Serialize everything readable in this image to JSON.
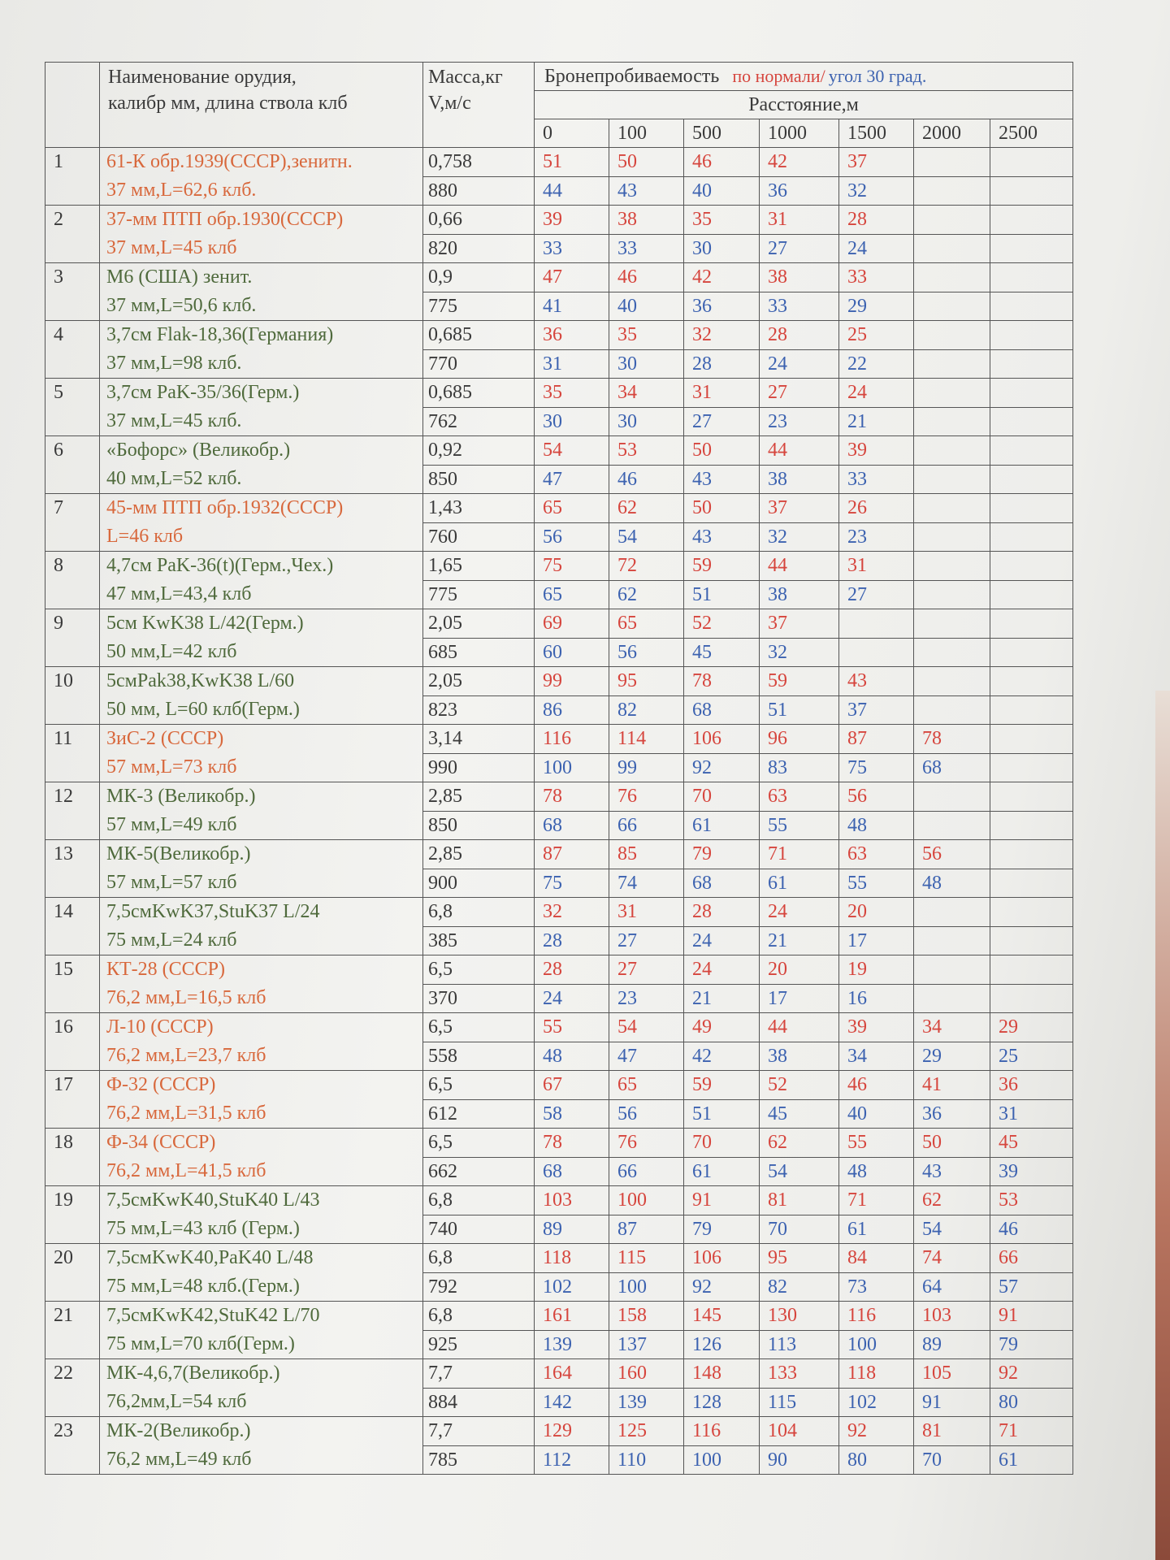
{
  "header": {
    "name_lines": [
      "Наименование  орудия,",
      "калибр мм, длина  ствола клб"
    ],
    "mass_lines": [
      "Масса,кг",
      "V,м/с"
    ],
    "penetration": "Бронепробиваемость",
    "normal": "по нормали/",
    "angle": "угол 30 град.",
    "normal_color": "#d6453d",
    "angle_color": "#3c62b0",
    "distance": "Расстояние,м",
    "distances": [
      "0",
      "100",
      "500",
      "1000",
      "1500",
      "2000",
      "2500"
    ]
  },
  "rows": [
    {
      "num": 1,
      "name": [
        "61-К обр.1939(СССР),зенитн.",
        "37 мм,L=62,6 клб."
      ],
      "color": "#d8683c",
      "mass": "0,758",
      "velocity": 880,
      "normal": [
        51,
        50,
        46,
        42,
        37
      ],
      "angle": [
        44,
        43,
        40,
        36,
        32
      ]
    },
    {
      "num": 2,
      "name": [
        "37-мм ПТП обр.1930(СССР)",
        "37 мм,L=45 клб"
      ],
      "color": "#d8683c",
      "mass": "0,66",
      "velocity": 820,
      "normal": [
        39,
        38,
        35,
        31,
        28
      ],
      "angle": [
        33,
        33,
        30,
        27,
        24
      ]
    },
    {
      "num": 3,
      "name": [
        "М6 (США) зенит.",
        "37 мм,L=50,6 клб."
      ],
      "color": "#4f6a3c",
      "mass": "0,9",
      "velocity": 775,
      "normal": [
        47,
        46,
        42,
        38,
        33
      ],
      "angle": [
        41,
        40,
        36,
        33,
        29
      ]
    },
    {
      "num": 4,
      "name": [
        "3,7см Flak-18,36(Германия)",
        "37 мм,L=98 клб."
      ],
      "color": "#4f6a3c",
      "mass": "0,685",
      "velocity": 770,
      "normal": [
        36,
        35,
        32,
        28,
        25
      ],
      "angle": [
        31,
        30,
        28,
        24,
        22
      ]
    },
    {
      "num": 5,
      "name": [
        "3,7см PaK-35/36(Герм.)",
        "37 мм,L=45 клб."
      ],
      "color": "#4f6a3c",
      "mass": "0,685",
      "velocity": 762,
      "normal": [
        35,
        34,
        31,
        27,
        24
      ],
      "angle": [
        30,
        30,
        27,
        23,
        21
      ]
    },
    {
      "num": 6,
      "name": [
        "«Бофорс» (Великобр.)",
        "40 мм,L=52 клб."
      ],
      "color": "#4f6a3c",
      "mass": "0,92",
      "velocity": 850,
      "normal": [
        54,
        53,
        50,
        44,
        39
      ],
      "angle": [
        47,
        46,
        43,
        38,
        33
      ]
    },
    {
      "num": 7,
      "name": [
        "45-мм ПТП обр.1932(СССР)",
        "L=46 клб"
      ],
      "color": "#d8683c",
      "mass": "1,43",
      "velocity": 760,
      "normal": [
        65,
        62,
        50,
        37,
        26
      ],
      "angle": [
        56,
        54,
        43,
        32,
        23
      ]
    },
    {
      "num": 8,
      "name": [
        "4,7см PaK-36(t)(Герм.,Чех.)",
        "47 мм,L=43,4 клб"
      ],
      "color": "#4f6a3c",
      "mass": "1,65",
      "velocity": 775,
      "normal": [
        75,
        72,
        59,
        44,
        31
      ],
      "angle": [
        65,
        62,
        51,
        38,
        27
      ]
    },
    {
      "num": 9,
      "name": [
        "5см KwK38 L/42(Герм.)",
        "50 мм,L=42 клб"
      ],
      "color": "#4f6a3c",
      "mass": "2,05",
      "velocity": 685,
      "normal": [
        69,
        65,
        52,
        37
      ],
      "angle": [
        60,
        56,
        45,
        32
      ]
    },
    {
      "num": 10,
      "name": [
        "5смPak38,KwK38 L/60",
        "50 мм, L=60 клб(Герм.)"
      ],
      "color": "#4f6a3c",
      "mass": "2,05",
      "velocity": 823,
      "normal": [
        99,
        95,
        78,
        59,
        43
      ],
      "angle": [
        86,
        82,
        68,
        51,
        37
      ]
    },
    {
      "num": 11,
      "name": [
        "ЗиС-2 (СССР)",
        "57 мм,L=73 клб"
      ],
      "color": "#d8683c",
      "mass": "3,14",
      "velocity": 990,
      "normal": [
        116,
        114,
        106,
        96,
        87,
        78
      ],
      "angle": [
        100,
        99,
        92,
        83,
        75,
        68
      ]
    },
    {
      "num": 12,
      "name": [
        "МК-3 (Великобр.)",
        "57 мм,L=49 клб"
      ],
      "color": "#4f6a3c",
      "mass": "2,85",
      "velocity": 850,
      "normal": [
        78,
        76,
        70,
        63,
        56
      ],
      "angle": [
        68,
        66,
        61,
        55,
        48
      ]
    },
    {
      "num": 13,
      "name": [
        "МК-5(Великобр.)",
        "57 мм,L=57 клб"
      ],
      "color": "#4f6a3c",
      "mass": "2,85",
      "velocity": 900,
      "normal": [
        87,
        85,
        79,
        71,
        63,
        56
      ],
      "angle": [
        75,
        74,
        68,
        61,
        55,
        48
      ]
    },
    {
      "num": 14,
      "name": [
        "7,5смKwK37,StuK37 L/24",
        "75 мм,L=24 клб"
      ],
      "color": "#4f6a3c",
      "mass": "6,8",
      "velocity": 385,
      "normal": [
        32,
        31,
        28,
        24,
        20
      ],
      "angle": [
        28,
        27,
        24,
        21,
        17
      ]
    },
    {
      "num": 15,
      "name": [
        "КТ-28 (СССР)",
        "76,2 мм,L=16,5 клб"
      ],
      "color": "#d8683c",
      "mass": "6,5",
      "velocity": 370,
      "normal": [
        28,
        27,
        24,
        20,
        19
      ],
      "angle": [
        24,
        23,
        21,
        17,
        16
      ]
    },
    {
      "num": 16,
      "name": [
        "Л-10 (СССР)",
        "76,2 мм,L=23,7 клб"
      ],
      "color": "#d8683c",
      "mass": "6,5",
      "velocity": 558,
      "normal": [
        55,
        54,
        49,
        44,
        39,
        34,
        29
      ],
      "angle": [
        48,
        47,
        42,
        38,
        34,
        29,
        25
      ]
    },
    {
      "num": 17,
      "name": [
        "Ф-32 (СССР)",
        "76,2 мм,L=31,5 клб"
      ],
      "color": "#d8683c",
      "mass": "6,5",
      "velocity": 612,
      "normal": [
        67,
        65,
        59,
        52,
        46,
        41,
        36
      ],
      "angle": [
        58,
        56,
        51,
        45,
        40,
        36,
        31
      ]
    },
    {
      "num": 18,
      "name": [
        "Ф-34 (СССР)",
        "76,2 мм,L=41,5 клб"
      ],
      "color": "#d8683c",
      "mass": "6,5",
      "velocity": 662,
      "normal": [
        78,
        76,
        70,
        62,
        55,
        50,
        45
      ],
      "angle": [
        68,
        66,
        61,
        54,
        48,
        43,
        39
      ]
    },
    {
      "num": 19,
      "name": [
        "7,5смKwK40,StuK40 L/43",
        "75 мм,L=43 клб (Герм.)"
      ],
      "color": "#4f6a3c",
      "mass": "6,8",
      "velocity": 740,
      "normal": [
        103,
        100,
        91,
        81,
        71,
        62,
        53
      ],
      "angle": [
        89,
        87,
        79,
        70,
        61,
        54,
        46
      ]
    },
    {
      "num": 20,
      "name": [
        "7,5смKwK40,PaK40 L/48",
        "75 мм,L=48 клб.(Герм.)"
      ],
      "color": "#4f6a3c",
      "mass": "6,8",
      "velocity": 792,
      "normal": [
        118,
        115,
        106,
        95,
        84,
        74,
        66
      ],
      "angle": [
        102,
        100,
        92,
        82,
        73,
        64,
        57
      ]
    },
    {
      "num": 21,
      "name": [
        "7,5смKwK42,StuK42 L/70",
        "75 мм,L=70 клб(Герм.)"
      ],
      "color": "#4f6a3c",
      "mass": "6,8",
      "velocity": 925,
      "normal": [
        161,
        158,
        145,
        130,
        116,
        103,
        91
      ],
      "angle": [
        139,
        137,
        126,
        113,
        100,
        89,
        79
      ]
    },
    {
      "num": 22,
      "name": [
        "МК-4,6,7(Великобр.)",
        "76,2мм,L=54 клб"
      ],
      "color": "#4f6a3c",
      "mass": "7,7",
      "velocity": 884,
      "normal": [
        164,
        160,
        148,
        133,
        118,
        105,
        92
      ],
      "angle": [
        142,
        139,
        128,
        115,
        102,
        91,
        80
      ]
    },
    {
      "num": 23,
      "name": [
        "МК-2(Великобр.)",
        "76,2 мм,L=49 клб"
      ],
      "color": "#4f6a3c",
      "mass": "7,7",
      "velocity": 785,
      "normal": [
        129,
        125,
        116,
        104,
        92,
        81,
        71
      ],
      "angle": [
        112,
        110,
        100,
        90,
        80,
        70,
        61
      ]
    }
  ]
}
